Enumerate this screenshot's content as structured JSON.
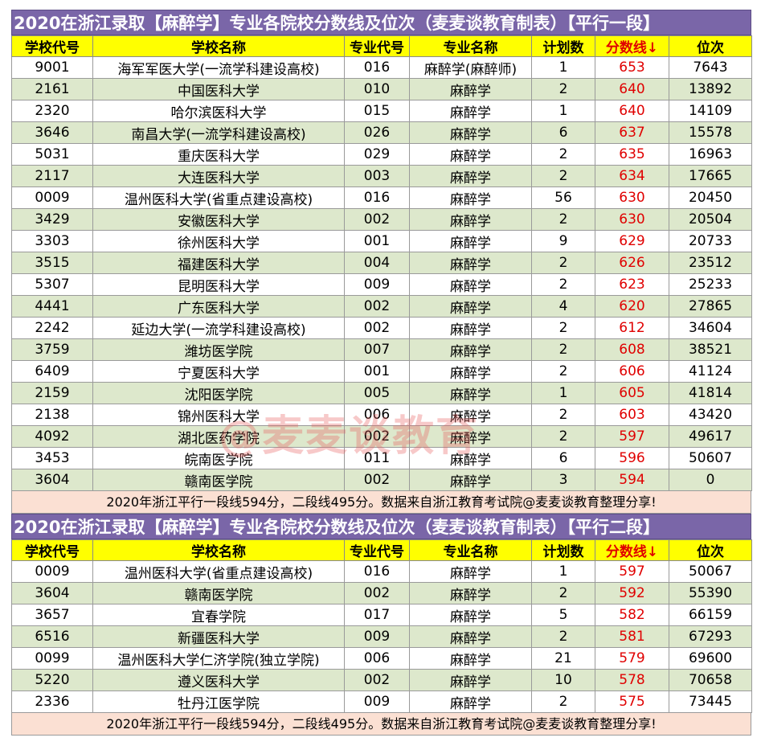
{
  "columns": [
    "学校代号",
    "学校名称",
    "专业代号",
    "专业名称",
    "计划数",
    "分数线↓",
    "位次"
  ],
  "section1": {
    "title": "2020在浙江录取【麻醉学】专业各院校分数线及位次（麦麦谈教育制表）【平行一段】",
    "rows": [
      [
        "9001",
        "海军军医大学(一流学科建设高校)",
        "016",
        "麻醉学(麻醉师)",
        "1",
        "653",
        "7643"
      ],
      [
        "2161",
        "中国医科大学",
        "010",
        "麻醉学",
        "2",
        "640",
        "13892"
      ],
      [
        "2320",
        "哈尔滨医科大学",
        "015",
        "麻醉学",
        "1",
        "640",
        "14109"
      ],
      [
        "3646",
        "南昌大学(一流学科建设高校)",
        "026",
        "麻醉学",
        "6",
        "637",
        "15578"
      ],
      [
        "5031",
        "重庆医科大学",
        "029",
        "麻醉学",
        "2",
        "635",
        "16963"
      ],
      [
        "2117",
        "大连医科大学",
        "003",
        "麻醉学",
        "2",
        "634",
        "17665"
      ],
      [
        "0009",
        "温州医科大学(省重点建设高校)",
        "016",
        "麻醉学",
        "56",
        "630",
        "20450"
      ],
      [
        "3429",
        "安徽医科大学",
        "002",
        "麻醉学",
        "2",
        "630",
        "20504"
      ],
      [
        "3303",
        "徐州医科大学",
        "001",
        "麻醉学",
        "9",
        "629",
        "20733"
      ],
      [
        "3515",
        "福建医科大学",
        "004",
        "麻醉学",
        "2",
        "626",
        "23512"
      ],
      [
        "5307",
        "昆明医科大学",
        "009",
        "麻醉学",
        "2",
        "623",
        "25233"
      ],
      [
        "4441",
        "广东医科大学",
        "002",
        "麻醉学",
        "4",
        "620",
        "27865"
      ],
      [
        "2242",
        "延边大学(一流学科建设高校)",
        "002",
        "麻醉学",
        "2",
        "612",
        "34604"
      ],
      [
        "3759",
        "潍坊医学院",
        "007",
        "麻醉学",
        "2",
        "608",
        "38521"
      ],
      [
        "6409",
        "宁夏医科大学",
        "001",
        "麻醉学",
        "2",
        "606",
        "41124"
      ],
      [
        "2159",
        "沈阳医学院",
        "005",
        "麻醉学",
        "1",
        "605",
        "41814"
      ],
      [
        "2138",
        "锦州医科大学",
        "006",
        "麻醉学",
        "2",
        "603",
        "43420"
      ],
      [
        "4092",
        "湖北医药学院",
        "002",
        "麻醉学",
        "2",
        "597",
        "49617"
      ],
      [
        "3453",
        "皖南医学院",
        "011",
        "麻醉学",
        "6",
        "596",
        "50607"
      ],
      [
        "3604",
        "赣南医学院",
        "002",
        "麻醉学",
        "3",
        "594",
        "0"
      ]
    ],
    "footer": "2020年浙江平行一段线594分，二段线495分。数据来自浙江教育考试院@麦麦谈教育整理分享!"
  },
  "section2": {
    "title": "2020在浙江录取【麻醉学】专业各院校分数线及位次（麦麦谈教育制表）【平行二段】",
    "rows": [
      [
        "0009",
        "温州医科大学(省重点建设高校)",
        "016",
        "麻醉学",
        "1",
        "597",
        "50067"
      ],
      [
        "3604",
        "赣南医学院",
        "002",
        "麻醉学",
        "2",
        "592",
        "55390"
      ],
      [
        "3657",
        "宜春学院",
        "017",
        "麻醉学",
        "5",
        "582",
        "66159"
      ],
      [
        "6516",
        "新疆医科大学",
        "009",
        "麻醉学",
        "2",
        "581",
        "67293"
      ],
      [
        "0099",
        "温州医科大学仁济学院(独立学院)",
        "006",
        "麻醉学",
        "21",
        "579",
        "69600"
      ],
      [
        "5220",
        "遵义医科大学",
        "002",
        "麻醉学",
        "10",
        "578",
        "70658"
      ],
      [
        "2336",
        "牡丹江医学院",
        "009",
        "麻醉学",
        "2",
        "575",
        "73445"
      ]
    ],
    "footer": "2020年浙江平行一段线594分，二段线495分。数据来自浙江教育考试院@麦麦谈教育整理分享!"
  },
  "watermark": "@麦麦谈教育",
  "colors": {
    "title_bg": "#7a66a8",
    "header_bg": "#ffff00",
    "score_text": "#e00000",
    "row_alt_bg": "#dde8cc",
    "footer_bg": "#fbe0d3"
  }
}
